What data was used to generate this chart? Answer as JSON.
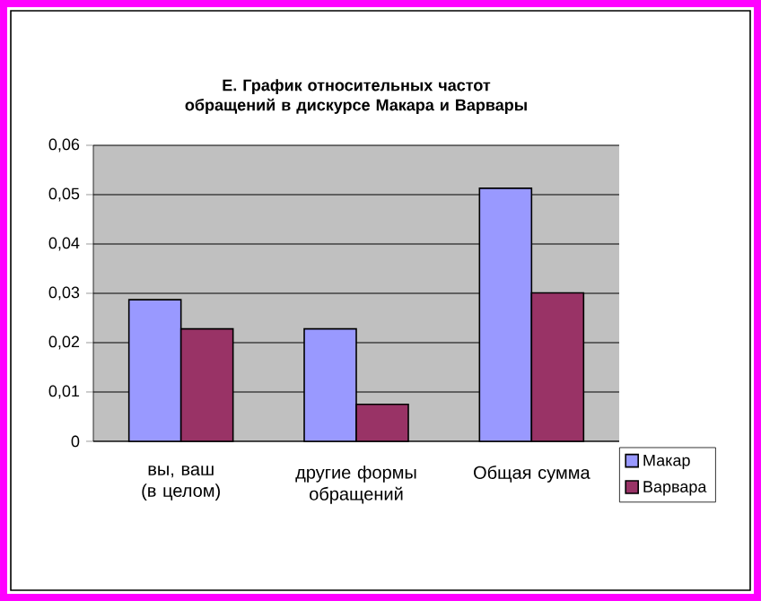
{
  "chart_data": {
    "type": "bar",
    "title": "Е. График относительных частот обращений в дискурсе Макара и Варвары",
    "categories": [
      "вы, ваш (в целом)",
      "другие формы обращений",
      "Общая сумма"
    ],
    "series": [
      {
        "name": "Макар",
        "color": "#9999ff",
        "values": [
          0.0287,
          0.0228,
          0.0513
        ]
      },
      {
        "name": "Варвара",
        "color": "#993366",
        "values": [
          0.0228,
          0.0075,
          0.0301
        ]
      }
    ],
    "ylim": [
      0,
      0.06
    ],
    "yticks": [
      0,
      {
        "value": 0.01,
        "label": "0,01"
      },
      {
        "value": 0.02,
        "label": "0,02"
      },
      {
        "value": 0.03,
        "label": "0,03"
      },
      {
        "value": 0.04,
        "label": "0,04"
      },
      {
        "value": 0.05,
        "label": "0,05"
      },
      {
        "value": 0.06,
        "label": "0,06"
      }
    ],
    "grid": "y",
    "legend": "bottom right"
  }
}
